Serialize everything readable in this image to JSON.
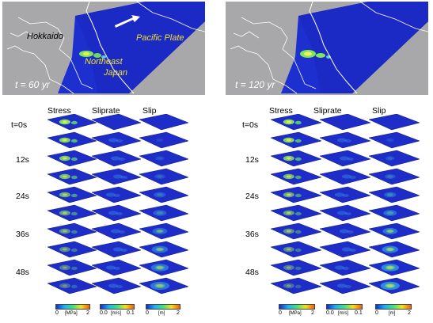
{
  "top_panels": [
    {
      "time": "t = 60 yr",
      "labels": {
        "hokkaido": "Hokkaido",
        "pacific_plate": "Pacific Plate",
        "northeast": "Northeast",
        "japan": "Japan"
      }
    },
    {
      "time": "t = 120 yr"
    }
  ],
  "columns": [
    "Stress",
    "Sliprate",
    "Slip"
  ],
  "rows": [
    "t=0s",
    "12s",
    "24s",
    "36s",
    "48s"
  ],
  "colorbars": [
    {
      "min": "0",
      "max": "2",
      "unit": "[MPa]"
    },
    {
      "min": "0.0",
      "max": "0.1",
      "unit": "[m/s]"
    },
    {
      "min": "0",
      "max": "2",
      "unit": "[m]"
    }
  ],
  "colors": {
    "plate": "#1e2fd0",
    "panel_bg": "#a8a8aa",
    "snap_bg": "#1f2dc8"
  }
}
